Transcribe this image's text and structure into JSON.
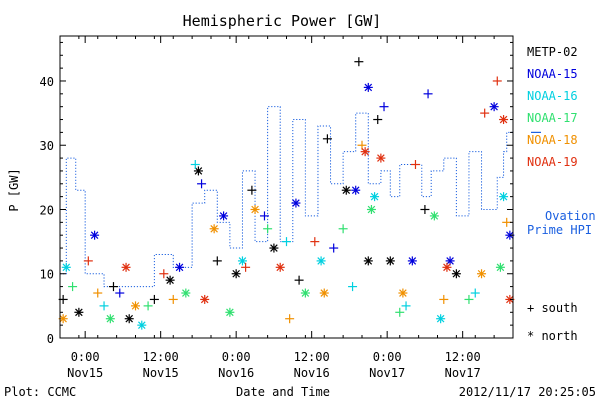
{
  "chart_data": {
    "type": "scatter",
    "title": "Hemispheric Power [GW]",
    "xlabel": "Date and Time",
    "ylabel": "P [GW]",
    "x_unit": "hours",
    "xlim": [
      "2012-11-14T20:00",
      "2012-11-17T20:00"
    ],
    "ylim": [
      0,
      47
    ],
    "yticks": [
      0,
      10,
      20,
      30,
      40
    ],
    "xticks": [
      {
        "t": "2012-11-15T00:00",
        "time": "0:00",
        "date": "Nov15"
      },
      {
        "t": "2012-11-15T12:00",
        "time": "12:00",
        "date": "Nov15"
      },
      {
        "t": "2012-11-16T00:00",
        "time": "0:00",
        "date": "Nov16"
      },
      {
        "t": "2012-11-16T12:00",
        "time": "12:00",
        "date": "Nov16"
      },
      {
        "t": "2012-11-17T00:00",
        "time": "0:00",
        "date": "Nov17"
      },
      {
        "t": "2012-11-17T12:00",
        "time": "12:00",
        "date": "Nov17"
      }
    ],
    "legend_position": "right",
    "series": [
      {
        "name": "METP-02",
        "color": "#000000",
        "points": [
          {
            "x": "2012-11-14T20:30",
            "y": 6,
            "h": "south"
          },
          {
            "x": "2012-11-14T23:00",
            "y": 4,
            "h": "north"
          },
          {
            "x": "2012-11-15T04:30",
            "y": 8,
            "h": "south"
          },
          {
            "x": "2012-11-15T07:00",
            "y": 3,
            "h": "north"
          },
          {
            "x": "2012-11-15T11:00",
            "y": 6,
            "h": "south"
          },
          {
            "x": "2012-11-15T13:30",
            "y": 9,
            "h": "north"
          },
          {
            "x": "2012-11-15T18:00",
            "y": 26,
            "h": "north"
          },
          {
            "x": "2012-11-15T21:00",
            "y": 12,
            "h": "south"
          },
          {
            "x": "2012-11-16T00:00",
            "y": 10,
            "h": "north"
          },
          {
            "x": "2012-11-16T02:30",
            "y": 23,
            "h": "south"
          },
          {
            "x": "2012-11-16T06:00",
            "y": 14,
            "h": "north"
          },
          {
            "x": "2012-11-16T10:00",
            "y": 9,
            "h": "south"
          },
          {
            "x": "2012-11-16T14:30",
            "y": 31,
            "h": "south"
          },
          {
            "x": "2012-11-16T17:30",
            "y": 23,
            "h": "north"
          },
          {
            "x": "2012-11-16T19:30",
            "y": 43,
            "h": "south"
          },
          {
            "x": "2012-11-16T21:00",
            "y": 12,
            "h": "north"
          },
          {
            "x": "2012-11-16T22:30",
            "y": 34,
            "h": "south"
          },
          {
            "x": "2012-11-17T00:30",
            "y": 12,
            "h": "north"
          },
          {
            "x": "2012-11-17T06:00",
            "y": 20,
            "h": "south"
          },
          {
            "x": "2012-11-17T11:00",
            "y": 10,
            "h": "north"
          }
        ]
      },
      {
        "name": "NOAA-15",
        "color": "#0000dd",
        "points": [
          {
            "x": "2012-11-15T01:30",
            "y": 16,
            "h": "north"
          },
          {
            "x": "2012-11-15T05:30",
            "y": 7,
            "h": "south"
          },
          {
            "x": "2012-11-15T15:00",
            "y": 11,
            "h": "north"
          },
          {
            "x": "2012-11-15T18:30",
            "y": 24,
            "h": "south"
          },
          {
            "x": "2012-11-15T22:00",
            "y": 19,
            "h": "north"
          },
          {
            "x": "2012-11-16T04:30",
            "y": 19,
            "h": "south"
          },
          {
            "x": "2012-11-16T09:30",
            "y": 21,
            "h": "north"
          },
          {
            "x": "2012-11-16T15:30",
            "y": 14,
            "h": "south"
          },
          {
            "x": "2012-11-16T19:00",
            "y": 23,
            "h": "north"
          },
          {
            "x": "2012-11-16T21:00",
            "y": 39,
            "h": "north"
          },
          {
            "x": "2012-11-16T23:30",
            "y": 36,
            "h": "south"
          },
          {
            "x": "2012-11-17T04:00",
            "y": 12,
            "h": "north"
          },
          {
            "x": "2012-11-17T06:30",
            "y": 38,
            "h": "south"
          },
          {
            "x": "2012-11-17T10:00",
            "y": 12,
            "h": "north"
          },
          {
            "x": "2012-11-17T17:00",
            "y": 36,
            "h": "north"
          },
          {
            "x": "2012-11-17T19:30",
            "y": 16,
            "h": "north"
          }
        ]
      },
      {
        "name": "NOAA-16",
        "color": "#00d0e0",
        "points": [
          {
            "x": "2012-11-14T21:00",
            "y": 11,
            "h": "north"
          },
          {
            "x": "2012-11-15T03:00",
            "y": 5,
            "h": "south"
          },
          {
            "x": "2012-11-15T09:00",
            "y": 2,
            "h": "north"
          },
          {
            "x": "2012-11-15T17:30",
            "y": 27,
            "h": "south"
          },
          {
            "x": "2012-11-16T01:00",
            "y": 12,
            "h": "north"
          },
          {
            "x": "2012-11-16T08:00",
            "y": 15,
            "h": "south"
          },
          {
            "x": "2012-11-16T13:30",
            "y": 12,
            "h": "north"
          },
          {
            "x": "2012-11-16T18:30",
            "y": 8,
            "h": "south"
          },
          {
            "x": "2012-11-16T22:00",
            "y": 22,
            "h": "north"
          },
          {
            "x": "2012-11-17T03:00",
            "y": 5,
            "h": "south"
          },
          {
            "x": "2012-11-17T08:30",
            "y": 3,
            "h": "north"
          },
          {
            "x": "2012-11-17T14:00",
            "y": 7,
            "h": "south"
          },
          {
            "x": "2012-11-17T18:30",
            "y": 22,
            "h": "north"
          }
        ]
      },
      {
        "name": "NOAA-17",
        "color": "#30e070",
        "points": [
          {
            "x": "2012-11-14T22:00",
            "y": 8,
            "h": "south"
          },
          {
            "x": "2012-11-15T04:00",
            "y": 3,
            "h": "north"
          },
          {
            "x": "2012-11-15T10:00",
            "y": 5,
            "h": "south"
          },
          {
            "x": "2012-11-15T16:00",
            "y": 7,
            "h": "north"
          },
          {
            "x": "2012-11-15T23:00",
            "y": 4,
            "h": "north"
          },
          {
            "x": "2012-11-16T05:00",
            "y": 17,
            "h": "south"
          },
          {
            "x": "2012-11-16T11:00",
            "y": 7,
            "h": "north"
          },
          {
            "x": "2012-11-16T17:00",
            "y": 17,
            "h": "south"
          },
          {
            "x": "2012-11-16T21:30",
            "y": 20,
            "h": "north"
          },
          {
            "x": "2012-11-17T02:00",
            "y": 4,
            "h": "south"
          },
          {
            "x": "2012-11-17T07:30",
            "y": 19,
            "h": "north"
          },
          {
            "x": "2012-11-17T13:00",
            "y": 6,
            "h": "south"
          },
          {
            "x": "2012-11-17T18:00",
            "y": 11,
            "h": "north"
          }
        ]
      },
      {
        "name": "NOAA-18",
        "color": "#f09000",
        "points": [
          {
            "x": "2012-11-14T20:30",
            "y": 3,
            "h": "north"
          },
          {
            "x": "2012-11-15T02:00",
            "y": 7,
            "h": "south"
          },
          {
            "x": "2012-11-15T08:00",
            "y": 5,
            "h": "north"
          },
          {
            "x": "2012-11-15T14:00",
            "y": 6,
            "h": "south"
          },
          {
            "x": "2012-11-15T20:30",
            "y": 17,
            "h": "north"
          },
          {
            "x": "2012-11-16T03:00",
            "y": 20,
            "h": "north"
          },
          {
            "x": "2012-11-16T08:30",
            "y": 3,
            "h": "south"
          },
          {
            "x": "2012-11-16T14:00",
            "y": 7,
            "h": "north"
          },
          {
            "x": "2012-11-16T20:00",
            "y": 30,
            "h": "south"
          },
          {
            "x": "2012-11-17T02:30",
            "y": 7,
            "h": "north"
          },
          {
            "x": "2012-11-17T09:00",
            "y": 6,
            "h": "south"
          },
          {
            "x": "2012-11-17T15:00",
            "y": 10,
            "h": "north"
          },
          {
            "x": "2012-11-17T19:00",
            "y": 18,
            "h": "south"
          }
        ]
      },
      {
        "name": "NOAA-19",
        "color": "#e03010",
        "points": [
          {
            "x": "2012-11-15T00:30",
            "y": 12,
            "h": "south"
          },
          {
            "x": "2012-11-15T06:30",
            "y": 11,
            "h": "north"
          },
          {
            "x": "2012-11-15T12:30",
            "y": 10,
            "h": "south"
          },
          {
            "x": "2012-11-15T19:00",
            "y": 6,
            "h": "north"
          },
          {
            "x": "2012-11-16T01:30",
            "y": 11,
            "h": "south"
          },
          {
            "x": "2012-11-16T07:00",
            "y": 11,
            "h": "north"
          },
          {
            "x": "2012-11-16T12:30",
            "y": 15,
            "h": "south"
          },
          {
            "x": "2012-11-16T20:30",
            "y": 29,
            "h": "north"
          },
          {
            "x": "2012-11-16T23:00",
            "y": 28,
            "h": "north"
          },
          {
            "x": "2012-11-17T04:30",
            "y": 27,
            "h": "south"
          },
          {
            "x": "2012-11-17T09:30",
            "y": 11,
            "h": "north"
          },
          {
            "x": "2012-11-17T15:30",
            "y": 35,
            "h": "south"
          },
          {
            "x": "2012-11-17T17:30",
            "y": 40,
            "h": "south"
          },
          {
            "x": "2012-11-17T18:30",
            "y": 34,
            "h": "north"
          },
          {
            "x": "2012-11-17T19:30",
            "y": 6,
            "h": "north"
          }
        ]
      }
    ],
    "ovation": {
      "name": "Ovation Prime HPI",
      "label_line1": "Ovation",
      "label_line2": "Prime HPI",
      "color": "#1a5fe0",
      "steps": [
        [
          "2012-11-14T20:00",
          10
        ],
        [
          "2012-11-14T21:00",
          28
        ],
        [
          "2012-11-14T22:30",
          23
        ],
        [
          "2012-11-15T00:00",
          10
        ],
        [
          "2012-11-15T03:00",
          8
        ],
        [
          "2012-11-15T09:00",
          8
        ],
        [
          "2012-11-15T11:00",
          13
        ],
        [
          "2012-11-15T14:00",
          11
        ],
        [
          "2012-11-15T17:00",
          21
        ],
        [
          "2012-11-15T19:00",
          23
        ],
        [
          "2012-11-15T21:00",
          18
        ],
        [
          "2012-11-15T23:00",
          14
        ],
        [
          "2012-11-16T01:00",
          26
        ],
        [
          "2012-11-16T03:00",
          15
        ],
        [
          "2012-11-16T05:00",
          36
        ],
        [
          "2012-11-16T07:00",
          15
        ],
        [
          "2012-11-16T09:00",
          34
        ],
        [
          "2012-11-16T11:00",
          19
        ],
        [
          "2012-11-16T13:00",
          33
        ],
        [
          "2012-11-16T15:00",
          24
        ],
        [
          "2012-11-16T17:00",
          29
        ],
        [
          "2012-11-16T19:00",
          35
        ],
        [
          "2012-11-16T21:00",
          24
        ],
        [
          "2012-11-16T23:00",
          26
        ],
        [
          "2012-11-17T00:30",
          22
        ],
        [
          "2012-11-17T02:00",
          27
        ],
        [
          "2012-11-17T04:00",
          27
        ],
        [
          "2012-11-17T05:30",
          22
        ],
        [
          "2012-11-17T07:00",
          26
        ],
        [
          "2012-11-17T09:00",
          28
        ],
        [
          "2012-11-17T11:00",
          19
        ],
        [
          "2012-11-17T13:00",
          29
        ],
        [
          "2012-11-17T15:00",
          20
        ],
        [
          "2012-11-17T16:30",
          20
        ],
        [
          "2012-11-17T17:30",
          25
        ],
        [
          "2012-11-17T18:30",
          29
        ],
        [
          "2012-11-17T19:00",
          32
        ]
      ]
    },
    "marker_legend": [
      {
        "symbol": "+",
        "label": "south"
      },
      {
        "symbol": "*",
        "label": "north"
      }
    ]
  },
  "footer": {
    "left": "Plot: CCMC",
    "right": "2012/11/17 20:25:05"
  }
}
